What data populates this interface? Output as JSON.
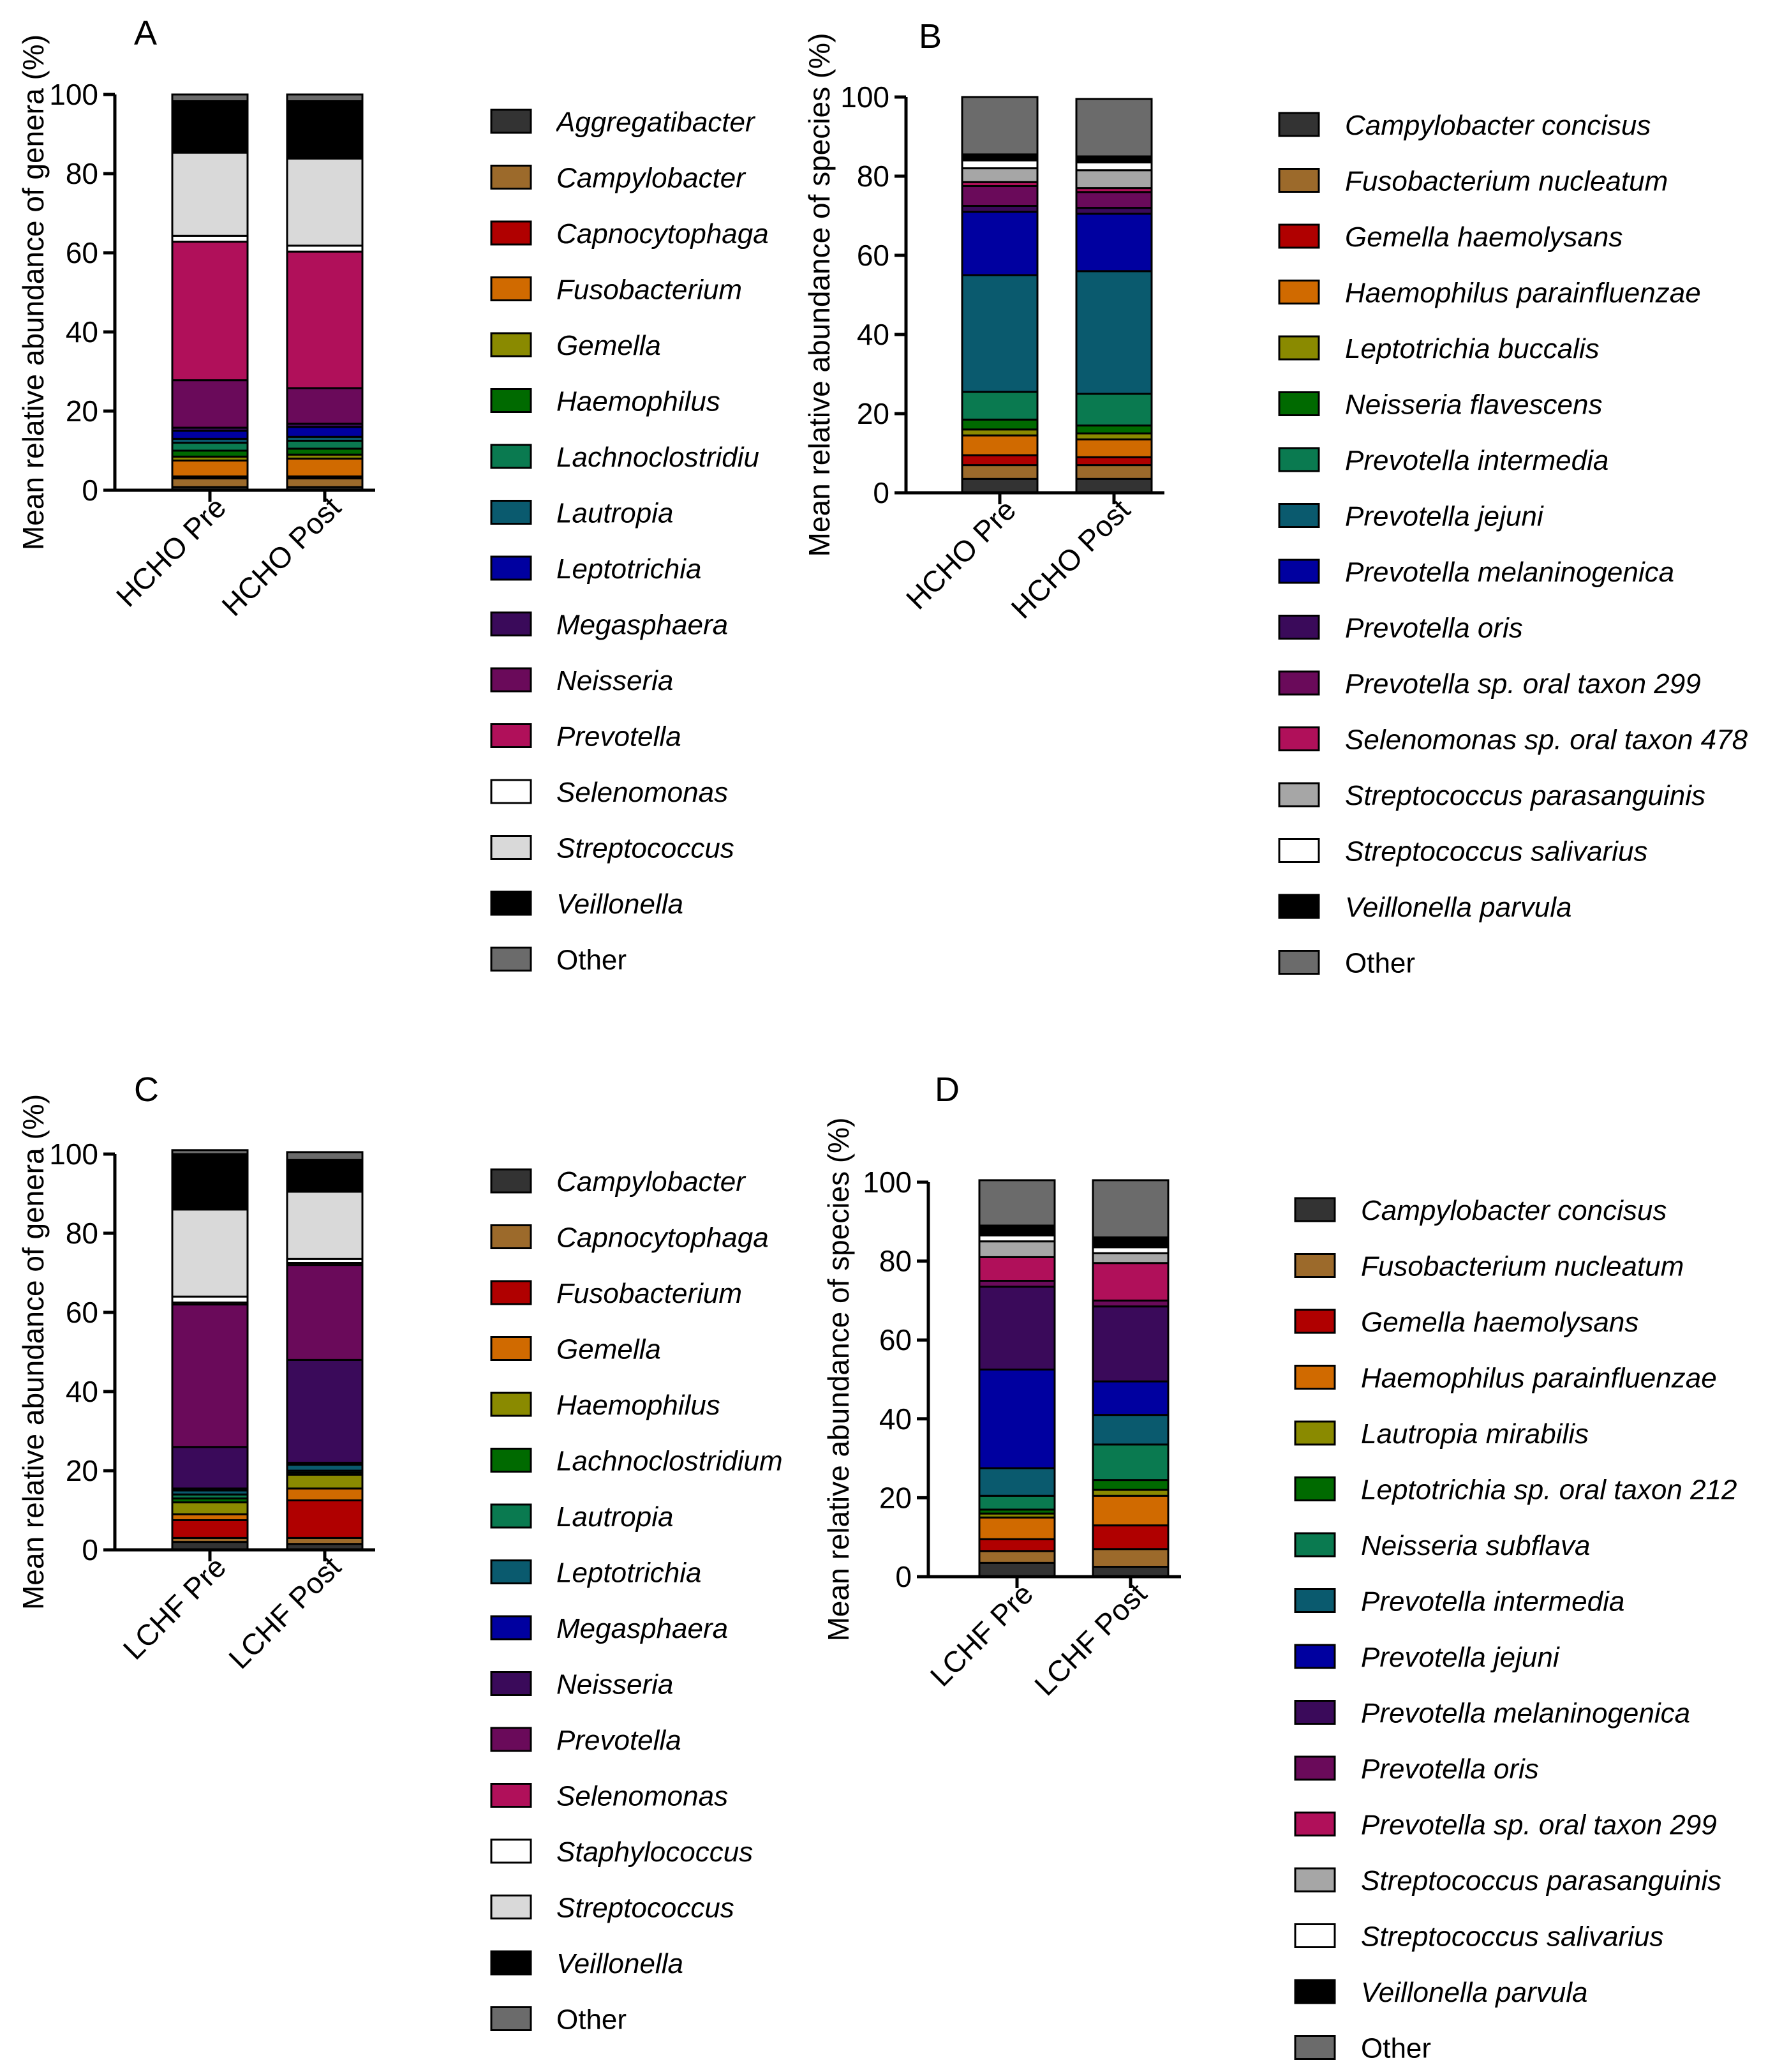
{
  "figure": {
    "panels": [
      "A",
      "B",
      "C",
      "D"
    ]
  },
  "chart_data": [
    {
      "panel": "A",
      "type": "bar",
      "stacked": true,
      "ylabel": "Mean relative abundance of genera (%)",
      "ylim": [
        0,
        100
      ],
      "yticks": [
        0,
        20,
        40,
        60,
        80,
        100
      ],
      "categories": [
        "HCHO Pre",
        "HCHO Post"
      ],
      "series": [
        {
          "name": "Aggregatibacter",
          "color": "#333333",
          "italic": true,
          "values": [
            0.8,
            0.8
          ]
        },
        {
          "name": "Campylobacter",
          "color": "#9c6a2b",
          "italic": true,
          "values": [
            2.2,
            2.2
          ]
        },
        {
          "name": "Capnocytophaga",
          "color": "#b00000",
          "italic": true,
          "values": [
            0.5,
            0.5
          ]
        },
        {
          "name": "Fusobacterium",
          "color": "#d06a00",
          "italic": true,
          "values": [
            4.0,
            4.5
          ]
        },
        {
          "name": "Gemella",
          "color": "#8a8a00",
          "italic": true,
          "values": [
            1.0,
            1.0
          ]
        },
        {
          "name": "Haemophilus",
          "color": "#006a00",
          "italic": true,
          "values": [
            1.5,
            1.5
          ]
        },
        {
          "name": "Lachnoclostridiu",
          "color": "#0a7a50",
          "italic": true,
          "values": [
            2.0,
            2.0
          ]
        },
        {
          "name": "Lautropia",
          "color": "#0a5a6e",
          "italic": true,
          "values": [
            1.0,
            1.0
          ]
        },
        {
          "name": "Leptotrichia",
          "color": "#0000a0",
          "italic": true,
          "values": [
            2.0,
            2.5
          ]
        },
        {
          "name": "Megasphaera",
          "color": "#3a0a5a",
          "italic": true,
          "values": [
            0.8,
            0.8
          ]
        },
        {
          "name": "Neisseria",
          "color": "#6a0a5a",
          "italic": true,
          "values": [
            12.0,
            9.0
          ]
        },
        {
          "name": "Prevotella",
          "color": "#b0105a",
          "italic": true,
          "values": [
            35.0,
            34.5
          ]
        },
        {
          "name": "Selenomonas",
          "color": "#ffffff",
          "italic": true,
          "values": [
            1.5,
            1.5
          ]
        },
        {
          "name": "Streptococcus",
          "color": "#d9d9d9",
          "italic": true,
          "values": [
            21.0,
            22.0
          ]
        },
        {
          "name": "Veillonella",
          "color": "#000000",
          "italic": true,
          "values": [
            13.0,
            14.5
          ]
        },
        {
          "name": "Other",
          "color": "#6b6b6b",
          "italic": false,
          "values": [
            1.7,
            1.7
          ]
        }
      ]
    },
    {
      "panel": "B",
      "type": "bar",
      "stacked": true,
      "ylabel": "Mean relative abundance of species (%)",
      "ylim": [
        0,
        100
      ],
      "yticks": [
        0,
        20,
        40,
        60,
        80,
        100
      ],
      "categories": [
        "HCHO Pre",
        "HCHO Post"
      ],
      "series": [
        {
          "name": "Campylobacter concisus",
          "color": "#333333",
          "italic": true,
          "values": [
            3.5,
            3.5
          ]
        },
        {
          "name": "Fusobacterium nucleatum",
          "color": "#9c6a2b",
          "italic": true,
          "values": [
            3.5,
            3.5
          ]
        },
        {
          "name": "Gemella haemolysans",
          "color": "#b00000",
          "italic": true,
          "values": [
            2.5,
            2.0
          ]
        },
        {
          "name": "Haemophilus parainfluenzae",
          "color": "#d06a00",
          "italic": true,
          "values": [
            5.0,
            4.5
          ]
        },
        {
          "name": "Leptotrichia buccalis",
          "color": "#8a8a00",
          "italic": true,
          "values": [
            1.5,
            1.5
          ]
        },
        {
          "name": "Neisseria flavescens",
          "color": "#006a00",
          "italic": true,
          "values": [
            2.5,
            2.0
          ]
        },
        {
          "name": "Prevotella intermedia",
          "color": "#0a7a50",
          "italic": true,
          "values": [
            7.0,
            8.0
          ]
        },
        {
          "name": "Prevotella jejuni",
          "color": "#0a5a6e",
          "italic": true,
          "values": [
            29.5,
            31.0
          ]
        },
        {
          "name": "Prevotella melaninogenica",
          "color": "#0000a0",
          "italic": true,
          "values": [
            16.0,
            14.5
          ]
        },
        {
          "name": "Prevotella oris",
          "color": "#3a0a5a",
          "italic": true,
          "values": [
            1.5,
            1.5
          ]
        },
        {
          "name": "Prevotella sp. oral taxon 299",
          "color": "#6a0a5a",
          "italic": true,
          "values": [
            5.0,
            4.0
          ]
        },
        {
          "name": "Selenomonas sp. oral taxon 478",
          "color": "#b0105a",
          "italic": true,
          "values": [
            1.0,
            1.0
          ]
        },
        {
          "name": "Streptococcus parasanguinis",
          "color": "#a6a6a6",
          "italic": true,
          "values": [
            3.5,
            4.5
          ]
        },
        {
          "name": "Streptococcus salivarius",
          "color": "#ffffff",
          "italic": true,
          "values": [
            2.0,
            2.0
          ]
        },
        {
          "name": "Veillonella parvula",
          "color": "#000000",
          "italic": true,
          "values": [
            1.5,
            1.5
          ]
        },
        {
          "name": "Other",
          "color": "#6b6b6b",
          "italic": false,
          "values": [
            14.5,
            14.5
          ]
        }
      ]
    },
    {
      "panel": "C",
      "type": "bar",
      "stacked": true,
      "ylabel": "Mean relative abundance of genera (%)",
      "ylim": [
        0,
        100
      ],
      "yticks": [
        0,
        20,
        40,
        60,
        80,
        100
      ],
      "categories": [
        "LCHF Pre",
        "LCHF Post"
      ],
      "series": [
        {
          "name": "Campylobacter",
          "color": "#333333",
          "italic": true,
          "values": [
            2.0,
            1.5
          ]
        },
        {
          "name": "Capnocytophaga",
          "color": "#9c6a2b",
          "italic": true,
          "values": [
            1.0,
            1.5
          ]
        },
        {
          "name": "Fusobacterium",
          "color": "#b00000",
          "italic": true,
          "values": [
            4.5,
            9.5
          ]
        },
        {
          "name": "Gemella",
          "color": "#d06a00",
          "italic": true,
          "values": [
            1.5,
            3.0
          ]
        },
        {
          "name": "Haemophilus",
          "color": "#8a8a00",
          "italic": true,
          "values": [
            3.0,
            3.5
          ]
        },
        {
          "name": "Lachnoclostridium",
          "color": "#006a00",
          "italic": true,
          "values": [
            1.0,
            0.5
          ]
        },
        {
          "name": "Lautropia",
          "color": "#0a7a50",
          "italic": true,
          "values": [
            1.0,
            0.5
          ]
        },
        {
          "name": "Leptotrichia",
          "color": "#0a5a6e",
          "italic": true,
          "values": [
            1.0,
            1.5
          ]
        },
        {
          "name": "Megasphaera",
          "color": "#0000a0",
          "italic": true,
          "values": [
            0.5,
            0.5
          ]
        },
        {
          "name": "Neisseria",
          "color": "#3a0a5a",
          "italic": true,
          "values": [
            10.5,
            26.0
          ]
        },
        {
          "name": "Prevotella",
          "color": "#6a0a5a",
          "italic": true,
          "values": [
            36.0,
            24.0
          ]
        },
        {
          "name": "Selenomonas",
          "color": "#b0105a",
          "italic": true,
          "values": [
            0.5,
            0.5
          ]
        },
        {
          "name": "Staphylococcus",
          "color": "#ffffff",
          "italic": true,
          "values": [
            1.5,
            1.0
          ]
        },
        {
          "name": "Streptococcus",
          "color": "#d9d9d9",
          "italic": true,
          "values": [
            22.0,
            17.0
          ]
        },
        {
          "name": "Veillonella",
          "color": "#000000",
          "italic": true,
          "values": [
            14.0,
            8.0
          ]
        },
        {
          "name": "Other",
          "color": "#6b6b6b",
          "italic": false,
          "values": [
            1.0,
            2.0
          ]
        }
      ]
    },
    {
      "panel": "D",
      "type": "bar",
      "stacked": true,
      "ylabel": "Mean relative abundance of species (%)",
      "ylim": [
        0,
        100
      ],
      "yticks": [
        0,
        20,
        40,
        60,
        80,
        100
      ],
      "categories": [
        "LCHF Pre",
        "LCHF Post"
      ],
      "series": [
        {
          "name": "Campylobacter concisus",
          "color": "#333333",
          "italic": true,
          "values": [
            3.5,
            2.5
          ]
        },
        {
          "name": "Fusobacterium nucleatum",
          "color": "#9c6a2b",
          "italic": true,
          "values": [
            3.0,
            4.5
          ]
        },
        {
          "name": "Gemella haemolysans",
          "color": "#b00000",
          "italic": true,
          "values": [
            3.0,
            6.0
          ]
        },
        {
          "name": "Haemophilus parainfluenzae",
          "color": "#d06a00",
          "italic": true,
          "values": [
            5.5,
            7.5
          ]
        },
        {
          "name": "Lautropia mirabilis",
          "color": "#8a8a00",
          "italic": true,
          "values": [
            1.0,
            1.5
          ]
        },
        {
          "name": "Leptotrichia sp. oral taxon 212",
          "color": "#006a00",
          "italic": true,
          "values": [
            1.0,
            2.5
          ]
        },
        {
          "name": "Neisseria subflava",
          "color": "#0a7a50",
          "italic": true,
          "values": [
            3.5,
            9.0
          ]
        },
        {
          "name": "Prevotella intermedia",
          "color": "#0a5a6e",
          "italic": true,
          "values": [
            7.0,
            7.5
          ]
        },
        {
          "name": "Prevotella jejuni",
          "color": "#0000a0",
          "italic": true,
          "values": [
            25.0,
            8.5
          ]
        },
        {
          "name": "Prevotella melaninogenica",
          "color": "#3a0a5a",
          "italic": true,
          "values": [
            21.0,
            19.0
          ]
        },
        {
          "name": "Prevotella oris",
          "color": "#6a0a5a",
          "italic": true,
          "values": [
            1.5,
            1.5
          ]
        },
        {
          "name": "Prevotella sp. oral taxon 299",
          "color": "#b0105a",
          "italic": true,
          "values": [
            6.0,
            9.5
          ]
        },
        {
          "name": "Streptococcus parasanguinis",
          "color": "#a6a6a6",
          "italic": true,
          "values": [
            4.0,
            2.5
          ]
        },
        {
          "name": "Streptococcus salivarius",
          "color": "#ffffff",
          "italic": true,
          "values": [
            1.5,
            1.5
          ]
        },
        {
          "name": "Veillonella parvula",
          "color": "#000000",
          "italic": true,
          "values": [
            2.5,
            2.5
          ]
        },
        {
          "name": "Other",
          "color": "#6b6b6b",
          "italic": false,
          "values": [
            11.5,
            14.5
          ]
        }
      ]
    }
  ]
}
